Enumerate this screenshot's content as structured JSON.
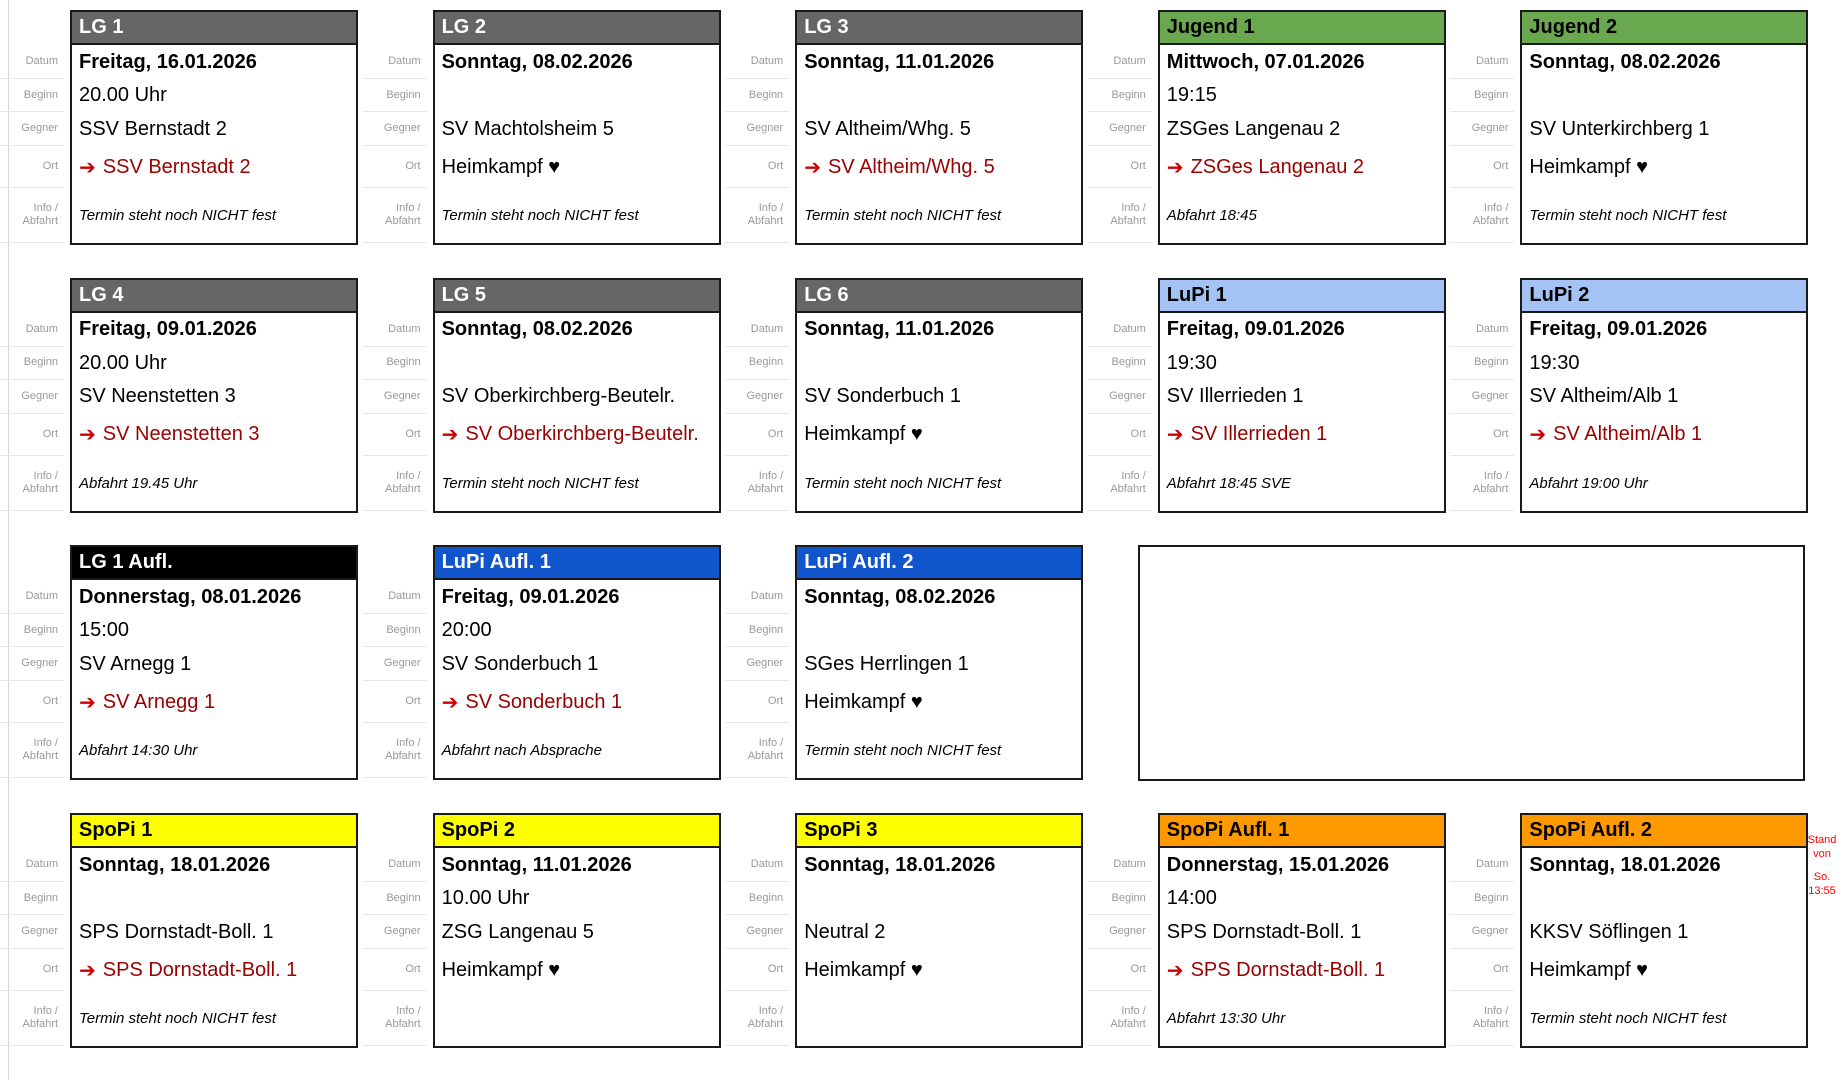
{
  "labels": {
    "datum": "Datum",
    "beginn": "Beginn",
    "gegner": "Gegner",
    "ort": "Ort",
    "info1": "Info /",
    "info2": "Abfahrt"
  },
  "icons": {
    "away_arrow": "➔"
  },
  "stamp": {
    "line1": "Stand von",
    "line2": "So. 13:55"
  },
  "colors": {
    "header_gray": "#666666",
    "header_green": "#6aa84f",
    "header_lightblue": "#a4c2f4",
    "header_blue": "#1155cc",
    "header_black": "#000000",
    "header_yellow": "#ffff00",
    "header_orange": "#ff9900",
    "away_text": "#990000",
    "arrow_red": "#cc0000",
    "stamp_red": "#ff0000",
    "label_gray": "#999999"
  },
  "cards": [
    {
      "title": "LG 1",
      "header_bg": "#666666",
      "header_fg": "#ffffff",
      "row": 0,
      "col": 0,
      "datum": "Freitag, 16.01.2026",
      "beginn": "20.00 Uhr",
      "gegner": "SSV Bernstadt 2",
      "ort_away": true,
      "ort_text": "SSV Bernstadt 2",
      "info": "Termin steht noch NICHT fest"
    },
    {
      "title": "LG 2",
      "header_bg": "#666666",
      "header_fg": "#ffffff",
      "row": 0,
      "col": 1,
      "datum": "Sonntag, 08.02.2026",
      "beginn": "",
      "gegner": "SV Machtolsheim 5",
      "ort_away": false,
      "ort_text": "Heimkampf ♥",
      "info": "Termin steht noch NICHT fest"
    },
    {
      "title": "LG 3",
      "header_bg": "#666666",
      "header_fg": "#ffffff",
      "row": 0,
      "col": 2,
      "datum": "Sonntag, 11.01.2026",
      "beginn": "",
      "gegner": "SV Altheim/Whg. 5",
      "ort_away": true,
      "ort_text": "SV Altheim/Whg. 5",
      "info": "Termin steht noch NICHT fest"
    },
    {
      "title": "Jugend 1",
      "header_bg": "#6aa84f",
      "header_fg": "#000000",
      "row": 0,
      "col": 3,
      "datum": "Mittwoch, 07.01.2026",
      "beginn": "19:15",
      "gegner": "ZSGes Langenau 2",
      "ort_away": true,
      "ort_text": "ZSGes Langenau 2",
      "info": "Abfahrt 18:45"
    },
    {
      "title": "Jugend 2",
      "header_bg": "#6aa84f",
      "header_fg": "#000000",
      "row": 0,
      "col": 4,
      "datum": "Sonntag, 08.02.2026",
      "beginn": "",
      "gegner": "SV Unterkirchberg 1",
      "ort_away": false,
      "ort_text": "Heimkampf ♥",
      "info": "Termin steht noch NICHT fest"
    },
    {
      "title": "LG 4",
      "header_bg": "#666666",
      "header_fg": "#ffffff",
      "row": 1,
      "col": 0,
      "datum": "Freitag, 09.01.2026",
      "beginn": "20.00 Uhr",
      "gegner": "SV Neenstetten 3",
      "ort_away": true,
      "ort_text": "SV Neenstetten 3",
      "info": "Abfahrt 19.45 Uhr"
    },
    {
      "title": "LG 5",
      "header_bg": "#666666",
      "header_fg": "#ffffff",
      "row": 1,
      "col": 1,
      "datum": "Sonntag, 08.02.2026",
      "beginn": "",
      "gegner": "SV Oberkirchberg-Beutelr.",
      "ort_away": true,
      "ort_text": "SV Oberkirchberg-Beutelr.",
      "info": "Termin steht noch NICHT fest"
    },
    {
      "title": "LG 6",
      "header_bg": "#666666",
      "header_fg": "#ffffff",
      "row": 1,
      "col": 2,
      "datum": "Sonntag, 11.01.2026",
      "beginn": "",
      "gegner": "SV Sonderbuch 1",
      "ort_away": false,
      "ort_text": "Heimkampf ♥",
      "info": "Termin steht noch NICHT fest"
    },
    {
      "title": "LuPi 1",
      "header_bg": "#a4c2f4",
      "header_fg": "#000000",
      "row": 1,
      "col": 3,
      "datum": "Freitag, 09.01.2026",
      "beginn": "19:30",
      "gegner": "SV Illerrieden 1",
      "ort_away": true,
      "ort_text": "SV Illerrieden 1",
      "info": "Abfahrt 18:45 SVE"
    },
    {
      "title": "LuPi 2",
      "header_bg": "#a4c2f4",
      "header_fg": "#000000",
      "row": 1,
      "col": 4,
      "datum": "Freitag, 09.01.2026",
      "beginn": "19:30",
      "gegner": "SV Altheim/Alb 1",
      "ort_away": true,
      "ort_text": "SV Altheim/Alb 1",
      "info": "Abfahrt 19:00 Uhr"
    },
    {
      "title": "LG 1 Aufl.",
      "header_bg": "#000000",
      "header_fg": "#ffffff",
      "row": 2,
      "col": 0,
      "datum": "Donnerstag, 08.01.2026",
      "beginn": "15:00",
      "gegner": "SV Arnegg 1",
      "ort_away": true,
      "ort_text": "SV Arnegg 1",
      "info": "Abfahrt 14:30 Uhr"
    },
    {
      "title": "LuPi Aufl. 1",
      "header_bg": "#1155cc",
      "header_fg": "#ffffff",
      "row": 2,
      "col": 1,
      "datum": "Freitag, 09.01.2026",
      "beginn": "20:00",
      "gegner": "SV Sonderbuch 1",
      "ort_away": true,
      "ort_text": "SV Sonderbuch 1",
      "info": "Abfahrt nach Absprache"
    },
    {
      "title": "LuPi Aufl. 2",
      "header_bg": "#1155cc",
      "header_fg": "#ffffff",
      "row": 2,
      "col": 2,
      "datum": "Sonntag, 08.02.2026",
      "beginn": "",
      "gegner": "SGes Herrlingen 1",
      "ort_away": false,
      "ort_text": "Heimkampf ♥",
      "info": "Termin steht noch NICHT fest"
    },
    {
      "title": "SpoPi 1",
      "header_bg": "#ffff00",
      "header_fg": "#000000",
      "row": 3,
      "col": 0,
      "datum": "Sonntag, 18.01.2026",
      "beginn": "",
      "gegner": "SPS Dornstadt-Boll. 1",
      "ort_away": true,
      "ort_text": "SPS Dornstadt-Boll. 1",
      "info": "Termin steht noch NICHT fest"
    },
    {
      "title": "SpoPi 2",
      "header_bg": "#ffff00",
      "header_fg": "#000000",
      "row": 3,
      "col": 1,
      "datum": "Sonntag, 11.01.2026",
      "beginn": "10.00 Uhr",
      "gegner": "ZSG Langenau 5",
      "ort_away": false,
      "ort_text": "Heimkampf ♥",
      "info": ""
    },
    {
      "title": "SpoPi 3",
      "header_bg": "#ffff00",
      "header_fg": "#000000",
      "row": 3,
      "col": 2,
      "datum": "Sonntag, 18.01.2026",
      "beginn": "",
      "gegner": "Neutral 2",
      "ort_away": false,
      "ort_text": "Heimkampf ♥",
      "info": ""
    },
    {
      "title": "SpoPi Aufl. 1",
      "header_bg": "#ff9900",
      "header_fg": "#000000",
      "row": 3,
      "col": 3,
      "datum": "Donnerstag, 15.01.2026",
      "beginn": "14:00",
      "gegner": "SPS Dornstadt-Boll. 1",
      "ort_away": true,
      "ort_text": "SPS Dornstadt-Boll. 1",
      "info": "Abfahrt 13:30 Uhr"
    },
    {
      "title": "SpoPi Aufl. 2",
      "header_bg": "#ff9900",
      "header_fg": "#000000",
      "row": 3,
      "col": 4,
      "datum": "Sonntag, 18.01.2026",
      "beginn": "",
      "gegner": "KKSV Söflingen 1",
      "ort_away": false,
      "ort_text": "Heimkampf ♥",
      "info": "Termin steht noch NICHT fest"
    }
  ]
}
